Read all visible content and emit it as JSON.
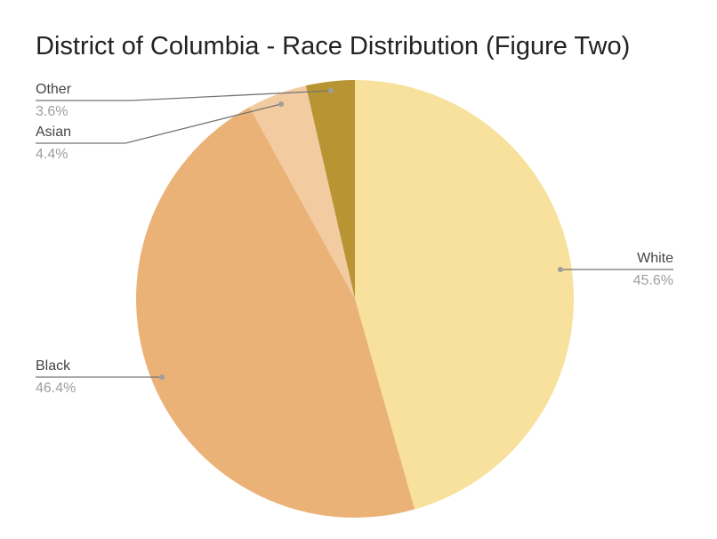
{
  "chart_data": {
    "type": "pie",
    "title": "District of Columbia - Race Distribution (Figure Two)",
    "slices": [
      {
        "label": "White",
        "value": 45.6,
        "display": "45.6%",
        "color": "#f8e19d"
      },
      {
        "label": "Black",
        "value": 46.4,
        "display": "46.4%",
        "color": "#ebb277"
      },
      {
        "label": "Asian",
        "value": 4.4,
        "display": "4.4%",
        "color": "#f2cba0"
      },
      {
        "label": "Other",
        "value": 3.6,
        "display": "3.6%",
        "color": "#b99433"
      }
    ],
    "start_angle": "12 o'clock",
    "direction": "clockwise",
    "labels": "outside with leader lines"
  }
}
